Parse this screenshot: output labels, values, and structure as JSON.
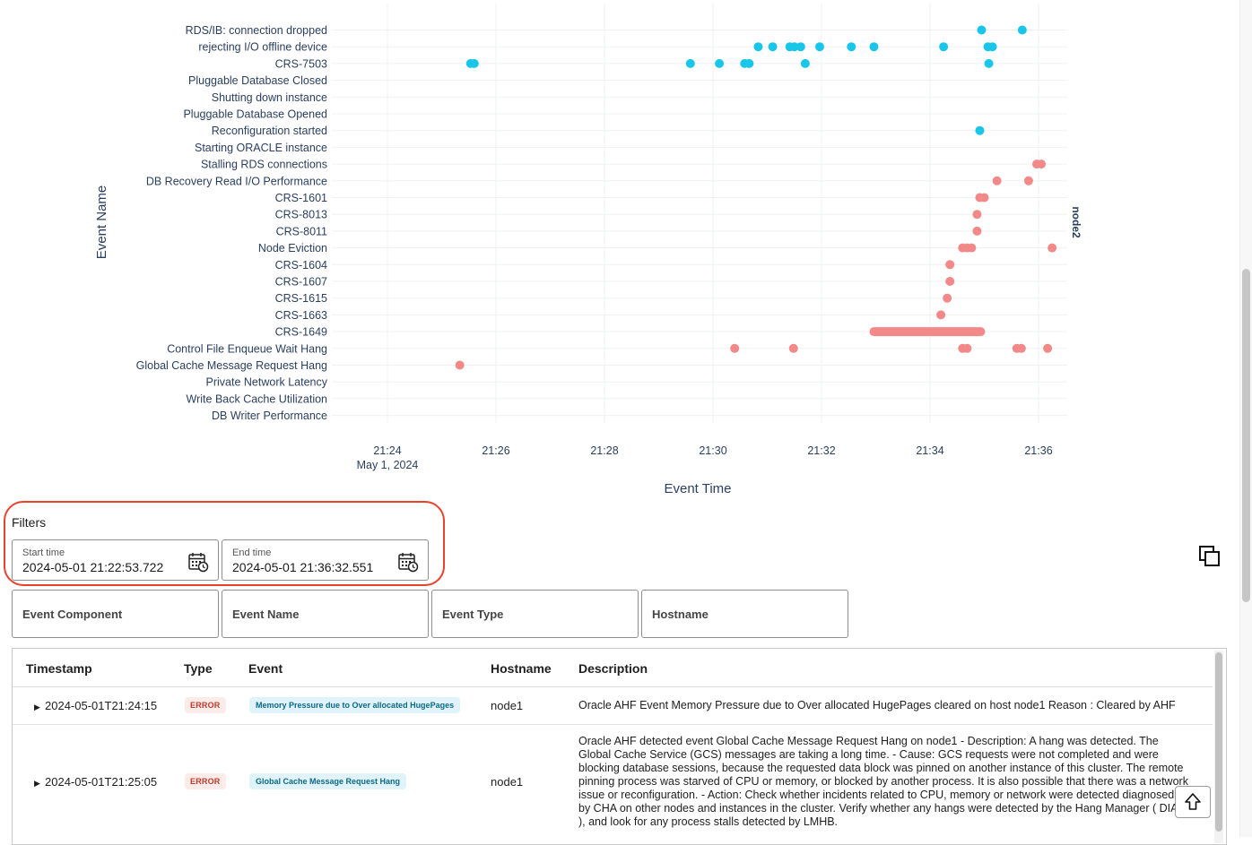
{
  "chart_data": {
    "type": "scatter",
    "x_title": "Event Time",
    "y_title": "Event Name",
    "facet_label": "node2",
    "x_ticks": [
      "21:24",
      "21:26",
      "21:28",
      "21:30",
      "21:32",
      "21:34",
      "21:36"
    ],
    "x_tick_sub": "May 1, 2024",
    "x_range_minutes": [
      21.0,
      37.0
    ],
    "y_categories": [
      "RDS/IB: connection dropped",
      "rejecting I/O offline device",
      "CRS-7503",
      "Pluggable Database  Closed",
      "Shutting down instance",
      "Pluggable Database Opened",
      "Reconfiguration started",
      "Starting ORACLE instance",
      "Stalling RDS connections",
      "DB Recovery Read I/O Performance",
      "CRS-1601",
      "CRS-8013",
      "CRS-8011",
      "Node Eviction",
      "CRS-1604",
      "CRS-1607",
      "CRS-1615",
      "CRS-1663",
      "CRS-1649",
      "Control File Enqueue Wait Hang",
      "Global Cache Message Request Hang",
      "Private Network Latency",
      "Write Back Cache Utilization",
      "DB Writer Performance"
    ],
    "series": [
      {
        "color": "#19c6ea",
        "points": [
          {
            "x": "21:34:57",
            "y": "RDS/IB: connection dropped"
          },
          {
            "x": "21:35:42",
            "y": "RDS/IB: connection dropped"
          },
          {
            "x": "21:30:50",
            "y": "rejecting I/O offline device"
          },
          {
            "x": "21:31:06",
            "y": "rejecting I/O offline device"
          },
          {
            "x": "21:31:25",
            "y": "rejecting I/O offline device"
          },
          {
            "x": "21:31:30",
            "y": "rejecting I/O offline device"
          },
          {
            "x": "21:31:37",
            "y": "rejecting I/O offline device"
          },
          {
            "x": "21:31:58",
            "y": "rejecting I/O offline device"
          },
          {
            "x": "21:32:33",
            "y": "rejecting I/O offline device"
          },
          {
            "x": "21:32:58",
            "y": "rejecting I/O offline device"
          },
          {
            "x": "21:34:15",
            "y": "rejecting I/O offline device"
          },
          {
            "x": "21:35:04",
            "y": "rejecting I/O offline device"
          },
          {
            "x": "21:35:09",
            "y": "rejecting I/O offline device"
          },
          {
            "x": "21:25:32",
            "y": "CRS-7503"
          },
          {
            "x": "21:25:36",
            "y": "CRS-7503"
          },
          {
            "x": "21:29:35",
            "y": "CRS-7503"
          },
          {
            "x": "21:30:07",
            "y": "CRS-7503"
          },
          {
            "x": "21:30:35",
            "y": "CRS-7503"
          },
          {
            "x": "21:30:40",
            "y": "CRS-7503"
          },
          {
            "x": "21:31:42",
            "y": "CRS-7503"
          },
          {
            "x": "21:35:05",
            "y": "CRS-7503"
          },
          {
            "x": "21:34:55",
            "y": "Reconfiguration started"
          }
        ]
      },
      {
        "color": "#f28888",
        "points": [
          {
            "x": "21:35:58",
            "y": "Stalling RDS connections"
          },
          {
            "x": "21:36:03",
            "y": "Stalling RDS connections"
          },
          {
            "x": "21:35:14",
            "y": "DB Recovery Read I/O Performance"
          },
          {
            "x": "21:35:49",
            "y": "DB Recovery Read I/O Performance"
          },
          {
            "x": "21:34:55",
            "y": "CRS-1601"
          },
          {
            "x": "21:35:00",
            "y": "CRS-1601"
          },
          {
            "x": "21:34:52",
            "y": "CRS-8013"
          },
          {
            "x": "21:34:52",
            "y": "CRS-8011"
          },
          {
            "x": "21:34:36",
            "y": "Node Eviction"
          },
          {
            "x": "21:34:41",
            "y": "Node Eviction"
          },
          {
            "x": "21:34:46",
            "y": "Node Eviction"
          },
          {
            "x": "21:36:15",
            "y": "Node Eviction"
          },
          {
            "x": "21:34:22",
            "y": "CRS-1604"
          },
          {
            "x": "21:34:22",
            "y": "CRS-1607"
          },
          {
            "x": "21:34:19",
            "y": "CRS-1615"
          },
          {
            "x": "21:34:12",
            "y": "CRS-1663"
          },
          {
            "x": "21:30:24",
            "y": "Control File Enqueue Wait Hang"
          },
          {
            "x": "21:31:29",
            "y": "Control File Enqueue Wait Hang"
          },
          {
            "x": "21:34:36",
            "y": "Control File Enqueue Wait Hang"
          },
          {
            "x": "21:34:41",
            "y": "Control File Enqueue Wait Hang"
          },
          {
            "x": "21:35:36",
            "y": "Control File Enqueue Wait Hang"
          },
          {
            "x": "21:35:41",
            "y": "Control File Enqueue Wait Hang"
          },
          {
            "x": "21:36:10",
            "y": "Control File Enqueue Wait Hang"
          },
          {
            "x": "21:25:20",
            "y": "Global Cache Message Request Hang"
          }
        ],
        "range_points": [
          {
            "y": "CRS-1649",
            "x_start": "21:32:58",
            "x_end": "21:34:56"
          }
        ]
      }
    ]
  },
  "filters": {
    "title": "Filters",
    "start_time": {
      "label": "Start time",
      "value": "2024-05-01 21:22:53.722"
    },
    "end_time": {
      "label": "End time",
      "value": "2024-05-01 21:36:32.551"
    },
    "fields": [
      "Event Component",
      "Event Name",
      "Event Type",
      "Hostname"
    ]
  },
  "table": {
    "columns": [
      "Timestamp",
      "Type",
      "Event",
      "Hostname",
      "Description"
    ],
    "rows": [
      {
        "timestamp": "2024-05-01T21:24:15",
        "type": "ERROR",
        "event": "Memory Pressure due to Over allocated HugePages",
        "hostname": "node1",
        "description": "Oracle AHF Event Memory Pressure due to Over allocated HugePages cleared on host node1 Reason : Cleared by AHF"
      },
      {
        "timestamp": "2024-05-01T21:25:05",
        "type": "ERROR",
        "event": "Global Cache Message Request Hang",
        "hostname": "node1",
        "description": "Oracle AHF detected event Global Cache Message Request Hang on node1 - Description: A hang was detected. The Global Cache Service (GCS) messages are taking a long time. - Cause: GCS requests were not completed and were blocking database sessions, because the requested data block was pinned on another instance of this cluster. The remote pinning process was starved of CPU or memory, or blocked by another process. It is also possible that there was a network issue or reconfiguration. - Action: Check whether incidents related to CPU, memory or network were detected diagnosed by CHA on other nodes and instances in the cluster. Verify whether any hangs were detected by the Hang Manager ( DIA0 ), and look for any process stalls detected by LMHB."
      }
    ]
  },
  "icons": {
    "calendar": "calendar-clock-icon",
    "copy": "copy-icon",
    "scroll_top": "arrow-up-icon",
    "expand": "caret-right-icon"
  }
}
